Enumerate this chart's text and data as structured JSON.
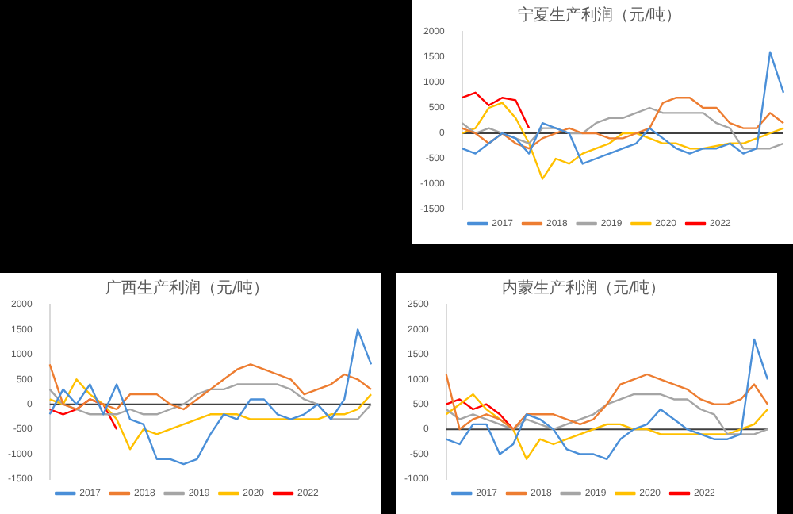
{
  "chart_data": [
    {
      "type": "line",
      "title": "宁夏生产利润（元/吨）",
      "ref_lines": [
        {
          "axis": "y",
          "value": 0,
          "color": "#404040"
        }
      ],
      "categories": [
        null,
        null,
        null,
        null,
        null,
        null,
        null,
        null,
        null,
        null,
        null,
        null,
        null,
        null,
        null,
        null,
        null,
        null,
        null,
        null,
        null,
        null,
        null,
        null,
        null
      ],
      "ylim": [
        -1500,
        2000
      ],
      "yticks": [
        -1500,
        -1000,
        -500,
        0,
        500,
        1000,
        1500,
        2000
      ],
      "grid": false,
      "legend": "bottom",
      "tick_labels": "y",
      "marker": "none",
      "line_style": "solid",
      "series": [
        {
          "name": "2017",
          "color": "#4a8fd8",
          "values": [
            -300,
            -400,
            -200,
            0,
            -100,
            -400,
            200,
            100,
            0,
            -600,
            -500,
            -400,
            -300,
            -200,
            100,
            -100,
            -300,
            -400,
            -300,
            -300,
            -200,
            -400,
            -300,
            1600,
            800
          ]
        },
        {
          "name": "2018",
          "color": "#ed7d31",
          "values": [
            100,
            0,
            -200,
            0,
            -200,
            -300,
            -100,
            0,
            100,
            0,
            0,
            -100,
            -100,
            0,
            100,
            600,
            700,
            700,
            500,
            500,
            200,
            100,
            100,
            400,
            200
          ]
        },
        {
          "name": "2019",
          "color": "#a5a5a5",
          "values": [
            200,
            0,
            100,
            0,
            -100,
            -200,
            100,
            100,
            0,
            0,
            200,
            300,
            300,
            400,
            500,
            400,
            400,
            400,
            400,
            200,
            100,
            -300,
            -300,
            -300,
            -200
          ]
        },
        {
          "name": "2020",
          "color": "#ffc000",
          "values": [
            0,
            100,
            500,
            600,
            300,
            -200,
            -900,
            -500,
            -600,
            -400,
            -300,
            -200,
            0,
            0,
            -100,
            -200,
            -200,
            -300,
            -300,
            -250,
            -200,
            -200,
            -100,
            0,
            100
          ]
        },
        {
          "name": "2022",
          "color": "#ff0000",
          "values": [
            700,
            800,
            550,
            700,
            650,
            100,
            null,
            null,
            null,
            null,
            null,
            null,
            null,
            null,
            null,
            null,
            null,
            null,
            null,
            null,
            null,
            null,
            null,
            null,
            null
          ]
        }
      ]
    },
    {
      "type": "line",
      "title": "广西生产利润（元/吨）",
      "ref_lines": [
        {
          "axis": "y",
          "value": 0,
          "color": "#404040"
        }
      ],
      "categories": [
        null,
        null,
        null,
        null,
        null,
        null,
        null,
        null,
        null,
        null,
        null,
        null,
        null,
        null,
        null,
        null,
        null,
        null,
        null,
        null,
        null,
        null,
        null,
        null,
        null
      ],
      "ylim": [
        -1500,
        2000
      ],
      "yticks": [
        -1500,
        -1000,
        -500,
        0,
        500,
        1000,
        1500,
        2000
      ],
      "grid": false,
      "legend": "bottom",
      "tick_labels": "y",
      "marker": "none",
      "line_style": "solid",
      "series": [
        {
          "name": "2017",
          "color": "#4a8fd8",
          "values": [
            -200,
            300,
            0,
            400,
            -200,
            400,
            -300,
            -400,
            -1100,
            -1100,
            -1200,
            -1100,
            -600,
            -200,
            -300,
            100,
            100,
            -200,
            -300,
            -200,
            0,
            -300,
            100,
            1500,
            800
          ]
        },
        {
          "name": "2018",
          "color": "#ed7d31",
          "values": [
            800,
            0,
            -100,
            100,
            0,
            -100,
            200,
            200,
            200,
            0,
            -100,
            100,
            300,
            500,
            700,
            800,
            700,
            600,
            500,
            200,
            300,
            400,
            600,
            500,
            300
          ]
        },
        {
          "name": "2019",
          "color": "#a5a5a5",
          "values": [
            300,
            0,
            -100,
            -200,
            -200,
            -200,
            -100,
            -200,
            -200,
            -100,
            0,
            200,
            300,
            300,
            400,
            400,
            400,
            400,
            300,
            100,
            0,
            -300,
            -300,
            -300,
            0
          ]
        },
        {
          "name": "2020",
          "color": "#ffc000",
          "values": [
            100,
            0,
            500,
            200,
            0,
            -300,
            -900,
            -500,
            -600,
            -500,
            -400,
            -300,
            -200,
            -200,
            -200,
            -300,
            -300,
            -300,
            -300,
            -300,
            -300,
            -200,
            -200,
            -100,
            200
          ]
        },
        {
          "name": "2022",
          "color": "#ff0000",
          "values": [
            -100,
            -200,
            -100,
            100,
            0,
            -500,
            null,
            null,
            null,
            null,
            null,
            null,
            null,
            null,
            null,
            null,
            null,
            null,
            null,
            null,
            null,
            null,
            null,
            null,
            null
          ]
        }
      ]
    },
    {
      "type": "line",
      "title": "内蒙生产利润（元/吨）",
      "ref_lines": [
        {
          "axis": "y",
          "value": 0,
          "color": "#404040"
        }
      ],
      "categories": [
        null,
        null,
        null,
        null,
        null,
        null,
        null,
        null,
        null,
        null,
        null,
        null,
        null,
        null,
        null,
        null,
        null,
        null,
        null,
        null,
        null,
        null,
        null,
        null,
        null
      ],
      "ylim": [
        -1000,
        2500
      ],
      "yticks": [
        -1000,
        -500,
        0,
        500,
        1000,
        1500,
        2000,
        2500
      ],
      "grid": false,
      "legend": "bottom",
      "tick_labels": "y",
      "marker": "none",
      "line_style": "solid",
      "series": [
        {
          "name": "2017",
          "color": "#4a8fd8",
          "values": [
            -200,
            -300,
            100,
            100,
            -500,
            -300,
            300,
            200,
            0,
            -400,
            -500,
            -500,
            -600,
            -200,
            0,
            100,
            400,
            200,
            0,
            -100,
            -200,
            -200,
            -100,
            1800,
            1000
          ]
        },
        {
          "name": "2018",
          "color": "#ed7d31",
          "values": [
            1100,
            0,
            200,
            300,
            200,
            0,
            300,
            300,
            300,
            200,
            100,
            200,
            500,
            900,
            1000,
            1100,
            1000,
            900,
            800,
            600,
            500,
            500,
            600,
            900,
            500
          ]
        },
        {
          "name": "2019",
          "color": "#a5a5a5",
          "values": [
            400,
            200,
            300,
            200,
            100,
            0,
            200,
            100,
            0,
            100,
            200,
            300,
            500,
            600,
            700,
            700,
            700,
            600,
            600,
            400,
            300,
            -100,
            -100,
            -100,
            0
          ]
        },
        {
          "name": "2020",
          "color": "#ffc000",
          "values": [
            300,
            500,
            700,
            400,
            200,
            0,
            -600,
            -200,
            -300,
            -200,
            -100,
            0,
            100,
            100,
            0,
            0,
            -100,
            -100,
            -100,
            -100,
            -100,
            -100,
            0,
            100,
            400
          ]
        },
        {
          "name": "2022",
          "color": "#ff0000",
          "values": [
            500,
            600,
            400,
            500,
            300,
            0,
            null,
            null,
            null,
            null,
            null,
            null,
            null,
            null,
            null,
            null,
            null,
            null,
            null,
            null,
            null,
            null,
            null,
            null,
            null
          ]
        }
      ]
    }
  ]
}
